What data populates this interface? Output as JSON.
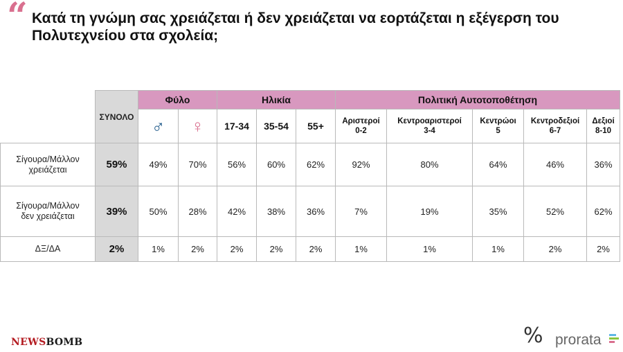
{
  "header": {
    "quote_mark": "“",
    "title": "Κατά τη γνώμη σας χρειάζεται ή δεν χρειάζεται να εορτάζεται η εξέγερση του Πολυτεχνείου στα σχολεία;"
  },
  "colors": {
    "accent_pink": "#d898bf",
    "total_gray": "#d9d9d9",
    "quote_pink": "#d9708f",
    "male_blue": "#1f5a8a",
    "brand_red": "#b41c22"
  },
  "chart_data": {
    "type": "table",
    "column_groups": [
      {
        "label": "Φύλο",
        "span": 2
      },
      {
        "label": "Ηλικία",
        "span": 3
      },
      {
        "label": "Πολιτική Αυτοτοποθέτηση",
        "span": 5
      }
    ],
    "total_header": "ΣΥΝΟΛΟ",
    "columns": {
      "male_icon": "♂",
      "female_icon": "♀",
      "age_1": "17-34",
      "age_2": "35-54",
      "age_3": "55+",
      "pol_1": {
        "line1": "Αριστεροί",
        "line2": "0-2"
      },
      "pol_2": {
        "line1": "Κεντροαριστεροί",
        "line2": "3-4"
      },
      "pol_3": {
        "line1": "Κεντρώοι",
        "line2": "5"
      },
      "pol_4": {
        "line1": "Κεντροδεξιοί",
        "line2": "6-7"
      },
      "pol_5": {
        "line1": "Δεξιοί",
        "line2": "8-10"
      }
    },
    "rows": [
      {
        "line1": "Σίγουρα/Μάλλον",
        "line2": "χρειάζεται",
        "total": "59%",
        "values": [
          "49%",
          "70%",
          "56%",
          "60%",
          "62%",
          "92%",
          "80%",
          "64%",
          "46%",
          "36%"
        ]
      },
      {
        "line1": "Σίγουρα/Μάλλον",
        "line2": "δεν χρειάζεται",
        "total": "39%",
        "values": [
          "50%",
          "28%",
          "42%",
          "38%",
          "36%",
          "7%",
          "19%",
          "35%",
          "52%",
          "62%"
        ]
      },
      {
        "line1": "ΔΞ/ΔΑ",
        "line2": "",
        "total": "2%",
        "values": [
          "1%",
          "2%",
          "2%",
          "2%",
          "2%",
          "1%",
          "1%",
          "1%",
          "2%",
          "2%"
        ]
      }
    ]
  },
  "footer": {
    "newsbomb_news": "NEWS",
    "newsbomb_bomb": "BOMB",
    "prorata_mark": "%",
    "prorata_word": "prorata",
    "prorata_bar_colors": [
      "#5fb7e6",
      "#8cc63f",
      "#d9708f"
    ]
  }
}
